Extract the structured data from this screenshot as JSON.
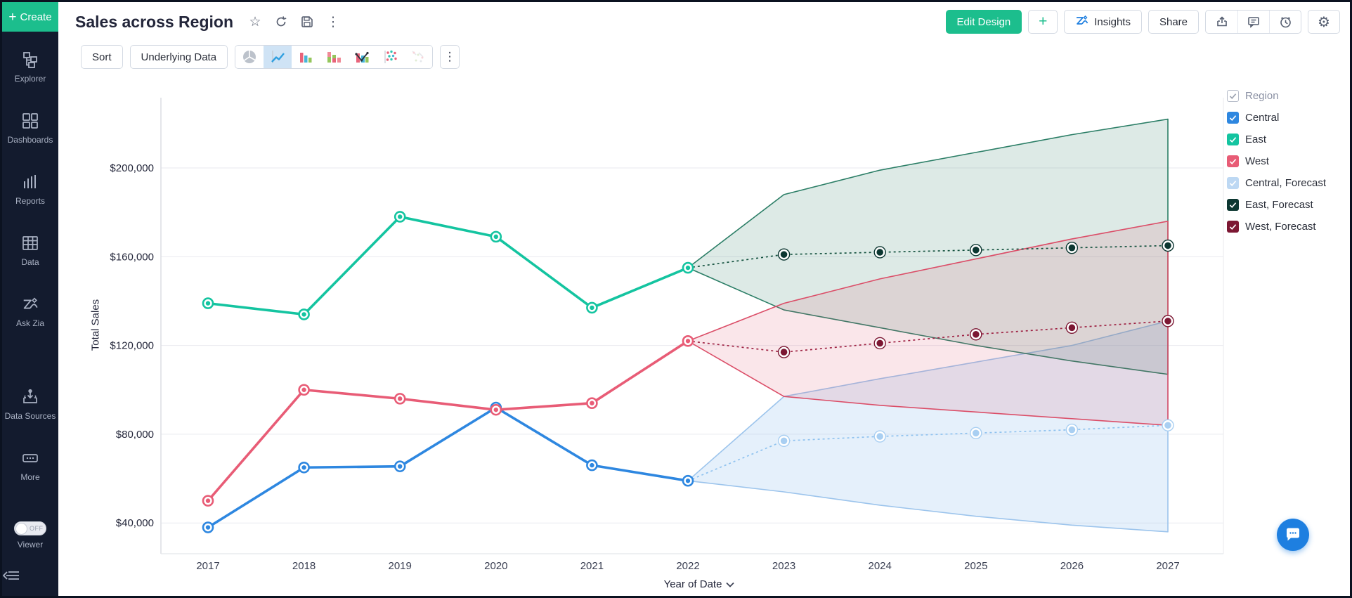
{
  "colors": {
    "brand_green": "#1CBE8D",
    "accent_blue": "#1E7FE0",
    "sidebar_bg": "#131B2E",
    "selected_tool_bg": "#CFE3F5"
  },
  "sidebar": {
    "create_label": "Create",
    "items": [
      {
        "label": "Explorer",
        "icon": "explorer-icon"
      },
      {
        "label": "Dashboards",
        "icon": "dashboards-icon"
      },
      {
        "label": "Reports",
        "icon": "reports-icon"
      },
      {
        "label": "Data",
        "icon": "data-icon"
      },
      {
        "label": "Ask Zia",
        "icon": "zia-icon"
      },
      {
        "label": "Data Sources",
        "icon": "data-sources-icon"
      },
      {
        "label": "More",
        "icon": "more-icon"
      }
    ],
    "viewer": {
      "label": "Viewer",
      "toggle_state": "OFF"
    }
  },
  "header": {
    "title": "Sales across Region",
    "actions": {
      "edit_design": "Edit Design",
      "add": "+",
      "insights": "Insights",
      "share": "Share"
    }
  },
  "toolbar": {
    "sort_label": "Sort",
    "underlying_data_label": "Underlying Data",
    "chart_types": [
      "pie",
      "line",
      "bar",
      "stacked-bar",
      "combo",
      "scatter",
      "area"
    ],
    "selected_chart_type": "line"
  },
  "legend": {
    "title": "Region",
    "items": [
      {
        "label": "Central",
        "color": "#2E87E0",
        "checked": true
      },
      {
        "label": "East",
        "color": "#14C4A0",
        "checked": true
      },
      {
        "label": "West",
        "color": "#E85C76",
        "checked": true
      },
      {
        "label": "Central, Forecast",
        "color": "#BDD8F3",
        "checked": true
      },
      {
        "label": "East, Forecast",
        "color": "#0C3731",
        "checked": true
      },
      {
        "label": "West, Forecast",
        "color": "#7C1733",
        "checked": true
      }
    ]
  },
  "chart_data": {
    "type": "line",
    "title": "Sales across Region",
    "xlabel": "Year of Date",
    "ylabel": "Total Sales",
    "x": [
      2017,
      2018,
      2019,
      2020,
      2021,
      2022,
      2023,
      2024,
      2025,
      2026,
      2027
    ],
    "ylim": [
      26000,
      232000
    ],
    "grid": true,
    "legend_position": "right",
    "yticks": [
      {
        "value": 40000,
        "label": "$40,000"
      },
      {
        "value": 80000,
        "label": "$80,000"
      },
      {
        "value": 120000,
        "label": "$120,000"
      },
      {
        "value": 160000,
        "label": "$160,000"
      },
      {
        "value": 200000,
        "label": "$200,000"
      }
    ],
    "series": [
      {
        "name": "Central",
        "kind": "actual",
        "color": "#2E87E0",
        "x": [
          2017,
          2018,
          2019,
          2020,
          2021,
          2022
        ],
        "values": [
          38000,
          65000,
          65500,
          92000,
          66000,
          59000
        ]
      },
      {
        "name": "East",
        "kind": "actual",
        "color": "#14C4A0",
        "x": [
          2017,
          2018,
          2019,
          2020,
          2021,
          2022
        ],
        "values": [
          139000,
          134000,
          178000,
          169000,
          137000,
          155000
        ]
      },
      {
        "name": "West",
        "kind": "actual",
        "color": "#E85C76",
        "x": [
          2017,
          2018,
          2019,
          2020,
          2021,
          2022
        ],
        "values": [
          50000,
          100000,
          96000,
          91000,
          94000,
          122000
        ]
      },
      {
        "name": "Central, Forecast",
        "kind": "forecast",
        "line_color": "#8FC2EF",
        "dot_color": "#A9CFF2",
        "band_stroke": "#9CC4EC",
        "band_fill": "rgba(168,204,241,0.30)",
        "x": [
          2022,
          2023,
          2024,
          2025,
          2026,
          2027
        ],
        "values": [
          59000,
          77000,
          79000,
          80500,
          82000,
          84000
        ],
        "band_upper": [
          59000,
          97000,
          105000,
          112500,
          120000,
          131000
        ],
        "band_lower": [
          59000,
          54000,
          48000,
          43000,
          39000,
          36000
        ]
      },
      {
        "name": "East, Forecast",
        "kind": "forecast",
        "line_color": "#14523F",
        "dot_color": "#0C3731",
        "band_stroke": "#2B7E66",
        "band_fill": "rgba(45,125,102,0.16)",
        "x": [
          2022,
          2023,
          2024,
          2025,
          2026,
          2027
        ],
        "values": [
          155000,
          161000,
          162000,
          163000,
          164000,
          165000
        ],
        "band_upper": [
          155000,
          188000,
          199000,
          207000,
          215000,
          222000
        ],
        "band_lower": [
          155000,
          136000,
          128000,
          120000,
          113000,
          107000
        ]
      },
      {
        "name": "West, Forecast",
        "kind": "forecast",
        "line_color": "#9E2243",
        "dot_color": "#7C1733",
        "band_stroke": "#DB4E68",
        "band_fill": "rgba(219,78,104,0.14)",
        "x": [
          2022,
          2023,
          2024,
          2025,
          2026,
          2027
        ],
        "values": [
          122000,
          117000,
          121000,
          125000,
          128000,
          131000
        ],
        "band_upper": [
          122000,
          139000,
          150000,
          159000,
          168000,
          176000
        ],
        "band_lower": [
          122000,
          97000,
          93000,
          90000,
          87000,
          84000
        ]
      }
    ]
  }
}
